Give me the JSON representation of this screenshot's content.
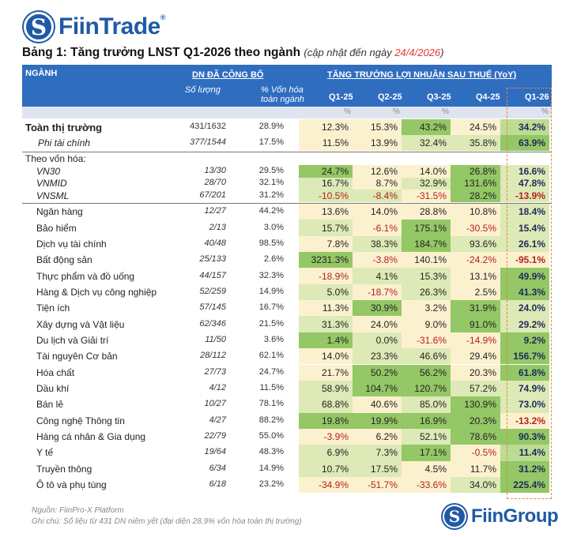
{
  "logo": {
    "brand": "FiinTrade",
    "reg": "®"
  },
  "title": {
    "main": "Bảng 1: Tăng trưởng LNST Q1-2026 theo ngành",
    "sub_prefix": "(cập nhật đến ngày ",
    "date": "24/4/2026",
    "sub_suffix": ")"
  },
  "header": {
    "sector": "NGÀNH",
    "published": "DN ĐÃ CÔNG BỐ",
    "growth": "TĂNG TRƯỞNG LỢI NHUẬN SAU THUẾ (YoY)",
    "count": "Số lượng",
    "cap1": "% Vốn hóa",
    "cap2": "toàn ngành",
    "quarters": [
      "Q1-25",
      "Q2-25",
      "Q3-25",
      "Q4-25",
      "Q1-26"
    ],
    "units": [
      "%",
      "%",
      "%",
      "",
      "%"
    ]
  },
  "colors": {
    "header_blue": "#2f6dbf",
    "negative": "#b22222",
    "highlight_border": "#e08a3a",
    "heat": [
      "#fcf1cf",
      "#dde9b6",
      "#bcdb93",
      "#94c765"
    ]
  },
  "group_label": "Theo vốn hóa:",
  "rows": [
    {
      "name": "Toàn thị trường",
      "count": "431/1632",
      "cap": "28.9%",
      "values": [
        "12.3%",
        "15.3%",
        "43.2%",
        "24.5%",
        "34.2%"
      ],
      "heat": [
        0,
        0,
        3,
        0,
        2
      ],
      "style": "total"
    },
    {
      "name": "Phi tài chính",
      "count": "377/1544",
      "cap": "17.5%",
      "values": [
        "11.5%",
        "13.9%",
        "32.4%",
        "35.8%",
        "63.9%"
      ],
      "heat": [
        0,
        0,
        1,
        1,
        3
      ],
      "style": "sub"
    },
    {
      "name": "VN30",
      "count": "13/30",
      "cap": "29.5%",
      "values": [
        "24.7%",
        "12.6%",
        "14.0%",
        "26.8%",
        "16.6%"
      ],
      "heat": [
        3,
        0,
        0,
        3,
        1
      ],
      "style": "idx"
    },
    {
      "name": "VNMID",
      "count": "28/70",
      "cap": "32.1%",
      "values": [
        "16.7%",
        "8.7%",
        "32.9%",
        "131.6%",
        "47.8%"
      ],
      "heat": [
        1,
        0,
        1,
        3,
        1
      ],
      "style": "idx"
    },
    {
      "name": "VNSML",
      "count": "67/201",
      "cap": "31.2%",
      "values": [
        "-10.5%",
        "-8.4%",
        "-31.5%",
        "28.2%",
        "-13.9%"
      ],
      "heat": [
        1,
        1,
        0,
        3,
        1
      ],
      "style": "idx"
    },
    {
      "name": "Ngân hàng",
      "count": "12/27",
      "cap": "44.2%",
      "values": [
        "13.6%",
        "14.0%",
        "28.8%",
        "10.8%",
        "18.4%"
      ],
      "heat": [
        0,
        0,
        0,
        0,
        1
      ]
    },
    {
      "name": "Bảo hiểm",
      "count": "2/13",
      "cap": "3.0%",
      "values": [
        "15.7%",
        "-6.1%",
        "175.1%",
        "-30.5%",
        "15.4%"
      ],
      "heat": [
        1,
        0,
        3,
        0,
        1
      ]
    },
    {
      "name": "Dịch vụ tài chính",
      "count": "40/48",
      "cap": "98.5%",
      "values": [
        "7.8%",
        "38.3%",
        "184.7%",
        "93.6%",
        "26.1%"
      ],
      "heat": [
        0,
        1,
        3,
        1,
        1
      ]
    },
    {
      "name": "Bất động sản",
      "count": "25/133",
      "cap": "2.6%",
      "values": [
        "3231.3%",
        "-3.8%",
        "140.1%",
        "-24.2%",
        "-95.1%"
      ],
      "heat": [
        3,
        0,
        0,
        0,
        0
      ]
    },
    {
      "name": "Thực phẩm và đồ uống",
      "count": "44/157",
      "cap": "32.3%",
      "values": [
        "-18.9%",
        "4.1%",
        "15.3%",
        "13.1%",
        "49.9%"
      ],
      "heat": [
        0,
        1,
        1,
        0,
        3
      ]
    },
    {
      "name": "Hàng & Dịch vụ công nghiệp",
      "count": "52/259",
      "cap": "14.9%",
      "values": [
        "5.0%",
        "-18.7%",
        "26.3%",
        "2.5%",
        "41.3%"
      ],
      "heat": [
        1,
        0,
        1,
        0,
        3
      ]
    },
    {
      "name": "Tiện ích",
      "count": "57/145",
      "cap": "16.7%",
      "values": [
        "11.3%",
        "30.9%",
        "3.2%",
        "31.9%",
        "24.0%"
      ],
      "heat": [
        0,
        3,
        0,
        3,
        1
      ]
    },
    {
      "name": "Xây dựng và Vật liệu",
      "count": "62/346",
      "cap": "21.5%",
      "values": [
        "31.3%",
        "24.0%",
        "9.0%",
        "91.0%",
        "29.2%"
      ],
      "heat": [
        1,
        0,
        0,
        3,
        1
      ]
    },
    {
      "name": "Du lịch và Giải trí",
      "count": "11/50",
      "cap": "3.6%",
      "values": [
        "1.4%",
        "0.0%",
        "-31.6%",
        "-14.9%",
        "9.2%"
      ],
      "heat": [
        3,
        1,
        0,
        0,
        3
      ]
    },
    {
      "name": "Tài nguyên Cơ bản",
      "count": "28/112",
      "cap": "62.1%",
      "values": [
        "14.0%",
        "23.3%",
        "46.6%",
        "29.4%",
        "156.7%"
      ],
      "heat": [
        0,
        1,
        1,
        0,
        3
      ]
    },
    {
      "name": "Hóa chất",
      "count": "27/73",
      "cap": "24.7%",
      "values": [
        "21.7%",
        "50.2%",
        "56.2%",
        "20.3%",
        "61.8%"
      ],
      "heat": [
        0,
        3,
        3,
        0,
        3
      ]
    },
    {
      "name": "Dầu khí",
      "count": "4/12",
      "cap": "11.5%",
      "values": [
        "58.9%",
        "104.7%",
        "120.7%",
        "57.2%",
        "74.9%"
      ],
      "heat": [
        1,
        3,
        3,
        1,
        1
      ]
    },
    {
      "name": "Bán lẻ",
      "count": "10/27",
      "cap": "78.1%",
      "values": [
        "68.8%",
        "40.6%",
        "85.0%",
        "130.9%",
        "73.0%"
      ],
      "heat": [
        1,
        0,
        1,
        3,
        1
      ]
    },
    {
      "name": "Công nghệ Thông tin",
      "count": "4/27",
      "cap": "88.2%",
      "values": [
        "19.8%",
        "19.9%",
        "16.9%",
        "20.3%",
        "-13.2%"
      ],
      "heat": [
        3,
        3,
        3,
        3,
        0
      ]
    },
    {
      "name": "Hàng cá nhân & Gia dụng",
      "count": "22/79",
      "cap": "55.0%",
      "values": [
        "-3.9%",
        "6.2%",
        "52.1%",
        "78.6%",
        "90.3%"
      ],
      "heat": [
        0,
        0,
        1,
        3,
        3
      ]
    },
    {
      "name": "Y tế",
      "count": "19/64",
      "cap": "48.3%",
      "values": [
        "6.9%",
        "7.3%",
        "17.1%",
        "-0.5%",
        "11.4%"
      ],
      "heat": [
        1,
        1,
        3,
        0,
        2
      ]
    },
    {
      "name": "Truyền thông",
      "count": "6/34",
      "cap": "14.9%",
      "values": [
        "10.7%",
        "17.5%",
        "4.5%",
        "11.7%",
        "31.2%"
      ],
      "heat": [
        1,
        1,
        0,
        0,
        3
      ]
    },
    {
      "name": "Ô tô và phụ tùng",
      "count": "6/18",
      "cap": "23.2%",
      "values": [
        "-34.9%",
        "-51.7%",
        "-33.6%",
        "34.0%",
        "225.4%"
      ],
      "heat": [
        0,
        0,
        0,
        1,
        3
      ]
    }
  ],
  "footer": {
    "source": "Nguồn: FiinPro-X Platform",
    "note": "Ghi chú: Số liệu từ 431 DN niêm yết (đại diện 28,9% vốn hóa toàn thị trường)",
    "brand": "FiinGroup"
  }
}
